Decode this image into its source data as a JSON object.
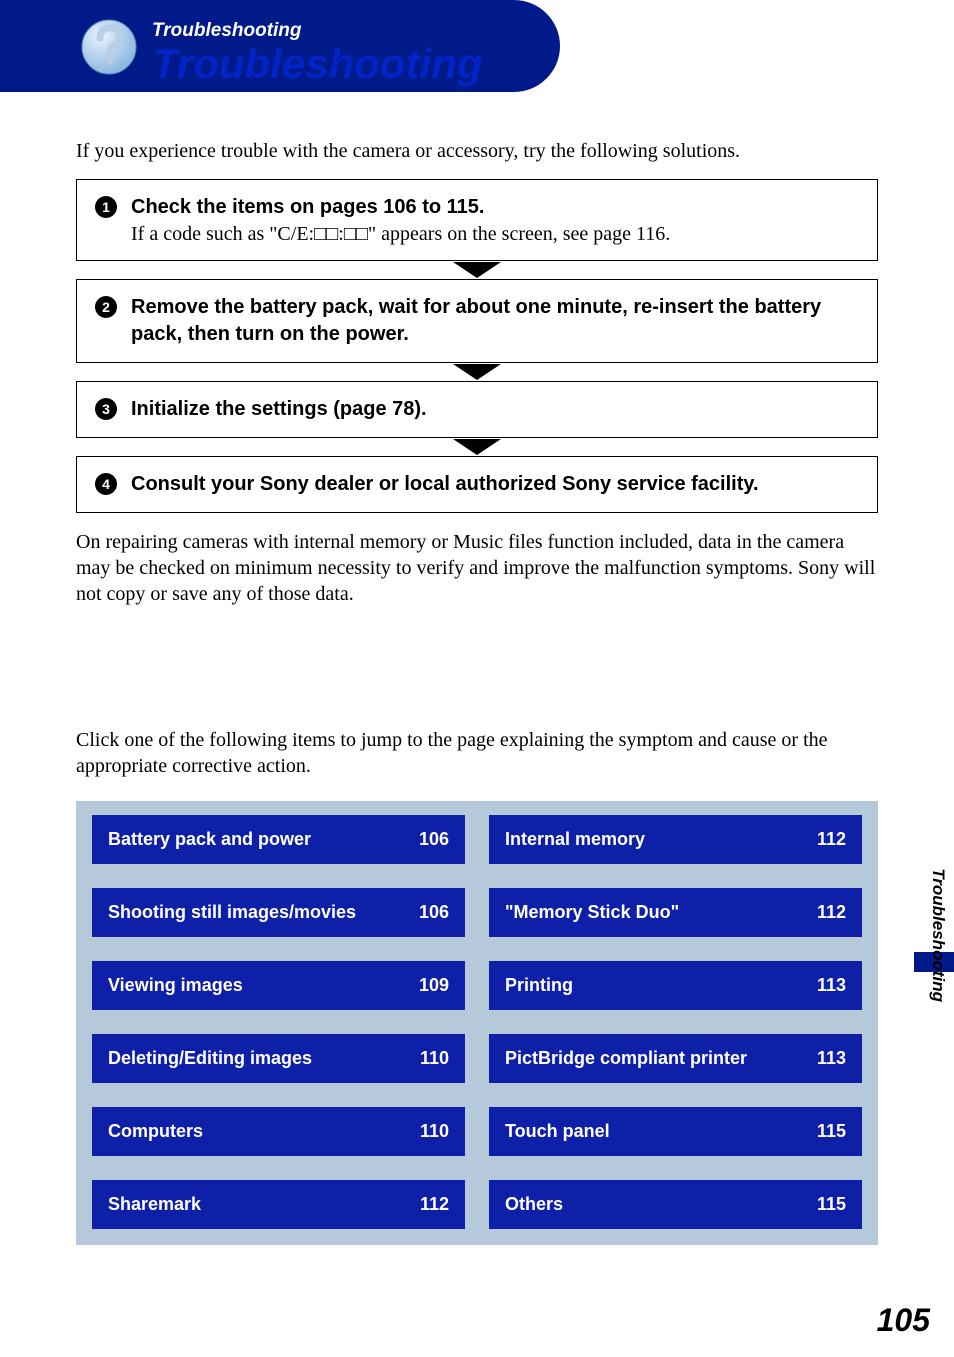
{
  "header": {
    "section_label": "Troubleshooting",
    "title": "Troubleshooting"
  },
  "intro": "If you experience trouble with the camera or accessory, try the following solutions.",
  "steps": [
    {
      "num": "1",
      "head": "Check the items on pages 106 to 115.",
      "sub": "If a code such as \"C/E:□□:□□\" appears on the screen, see page 116."
    },
    {
      "num": "2",
      "head": "Remove the battery pack, wait for about one minute, re-insert the battery pack, then turn on the power.",
      "sub": ""
    },
    {
      "num": "3",
      "head": "Initialize the settings (page 78).",
      "sub": ""
    },
    {
      "num": "4",
      "head": "Consult your Sony dealer or local authorized Sony service facility.",
      "sub": ""
    }
  ],
  "repair_note": "On repairing cameras with internal memory or Music files function included, data in the camera may be checked on minimum necessity to verify and improve the malfunction symptoms. Sony will not copy or save any of those data.",
  "jump_intro": "Click one of the following items to jump to the page explaining the symptom and cause or the appropriate corrective action.",
  "links_left": [
    {
      "label": "Battery pack and power",
      "page": "106"
    },
    {
      "label": "Shooting still images/movies",
      "page": "106"
    },
    {
      "label": "Viewing images",
      "page": "109"
    },
    {
      "label": "Deleting/Editing images",
      "page": "110"
    },
    {
      "label": "Computers",
      "page": "110"
    },
    {
      "label": "Sharemark",
      "page": "112"
    }
  ],
  "links_right": [
    {
      "label": "Internal memory",
      "page": "112"
    },
    {
      "label": "\"Memory Stick Duo\"",
      "page": "112"
    },
    {
      "label": "Printing",
      "page": "113"
    },
    {
      "label": "PictBridge compliant printer",
      "page": "113"
    },
    {
      "label": "Touch panel",
      "page": "115"
    },
    {
      "label": "Others",
      "page": "115"
    }
  ],
  "side_label": "Troubleshooting",
  "page_number": "105",
  "colors": {
    "brand_blue": "#001a8a",
    "title_blue": "#0024c5",
    "button_blue": "#0e1fa8",
    "panel_bg": "#b5c9da"
  }
}
